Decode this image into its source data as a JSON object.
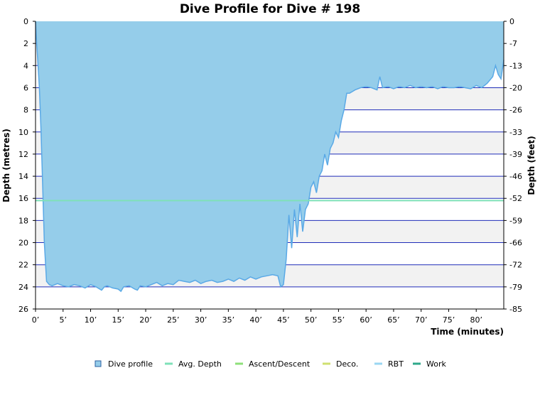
{
  "chart_data": {
    "type": "area",
    "title": "Dive Profile for Dive # 198",
    "xlabel": "Time (minutes)",
    "ylabel": "Depth (metres)",
    "ylabel_right": "Depth (feet)",
    "xlim": [
      0,
      85
    ],
    "ylim": [
      0,
      26
    ],
    "y_inverted": true,
    "grid": true,
    "x_ticks": [
      "0’",
      "5’",
      "10’",
      "15’",
      "20’",
      "25’",
      "30’",
      "35’",
      "40’",
      "45’",
      "50’",
      "55’",
      "60’",
      "65’",
      "70’",
      "75’",
      "80’"
    ],
    "y_ticks_left": [
      "0",
      "2",
      "4",
      "6",
      "8",
      "10",
      "12",
      "14",
      "16",
      "18",
      "20",
      "22",
      "24",
      "26"
    ],
    "y_ticks_right": [
      "0",
      "-7",
      "-13",
      "-20",
      "-26",
      "-33",
      "-39",
      "-46",
      "-52",
      "-59",
      "-66",
      "-72",
      "-79",
      "-85"
    ],
    "avg_depth": 16.2,
    "series": [
      {
        "name": "Dive profile",
        "color": "#95cdea",
        "line_color": "#5aa9e6",
        "x": [
          0,
          0.2,
          0.4,
          0.7,
          1.0,
          1.3,
          1.6,
          2.0,
          2.5,
          3,
          4,
          5,
          6,
          7,
          8,
          9,
          10,
          11,
          12,
          12.5,
          13,
          14,
          15,
          15.5,
          16,
          17,
          18,
          18.5,
          19,
          20,
          21,
          22,
          23,
          24,
          25,
          26,
          27,
          28,
          29,
          30,
          31,
          32,
          33,
          34,
          35,
          36,
          37,
          38,
          39,
          40,
          41,
          42,
          43,
          44,
          44.5,
          45,
          45.5,
          46,
          46.5,
          47,
          47.5,
          48,
          48.5,
          49,
          49.5,
          50,
          50.5,
          51,
          51.5,
          52,
          52.5,
          53,
          53.5,
          54,
          54.5,
          55,
          55.5,
          56,
          56.5,
          57,
          58,
          59,
          60,
          61,
          62,
          62.5,
          63,
          64,
          65,
          66,
          67,
          68,
          69,
          70,
          71,
          72,
          73,
          74,
          75,
          76,
          77,
          78,
          79,
          80,
          81,
          82,
          83,
          83.5,
          84,
          84.5,
          85
        ],
        "values": [
          0,
          2.0,
          3.5,
          6.0,
          10,
          15,
          20,
          23.5,
          23.8,
          23.9,
          23.7,
          23.9,
          24.0,
          23.8,
          23.9,
          24.1,
          23.8,
          24.0,
          24.3,
          24.0,
          23.9,
          24.1,
          24.2,
          24.4,
          24.0,
          23.9,
          24.2,
          24.3,
          23.9,
          24.0,
          23.8,
          23.6,
          23.9,
          23.7,
          23.8,
          23.4,
          23.5,
          23.6,
          23.4,
          23.7,
          23.5,
          23.4,
          23.6,
          23.5,
          23.3,
          23.5,
          23.2,
          23.4,
          23.1,
          23.3,
          23.1,
          23.0,
          22.9,
          23.0,
          24.0,
          23.8,
          21.5,
          17.5,
          20.5,
          17.0,
          19.5,
          16.5,
          19.0,
          17.0,
          16.5,
          15.0,
          14.5,
          15.5,
          14.0,
          13.5,
          12.0,
          13.0,
          11.5,
          11.0,
          10.0,
          10.5,
          9.0,
          8.0,
          6.5,
          6.5,
          6.2,
          6.0,
          5.9,
          6.0,
          6.2,
          5.0,
          6.0,
          5.9,
          6.1,
          5.9,
          6.0,
          5.8,
          6.0,
          5.9,
          6.0,
          5.9,
          6.1,
          5.9,
          6.0,
          6.0,
          5.9,
          6.0,
          6.1,
          5.8,
          6.0,
          5.6,
          5.0,
          4.0,
          4.8,
          5.2,
          3.5
        ]
      }
    ],
    "legend": {
      "placement": "bottom",
      "items": [
        {
          "label": "Dive profile",
          "color": "#95cdea",
          "type": "box"
        },
        {
          "label": "Avg. Depth",
          "color": "#7fe1b8",
          "type": "line"
        },
        {
          "label": "Ascent/Descent",
          "color": "#8ee07a",
          "type": "line"
        },
        {
          "label": "Deco.",
          "color": "#cfe070",
          "type": "line"
        },
        {
          "label": "RBT",
          "color": "#9ad6f2",
          "type": "line"
        },
        {
          "label": "Work",
          "color": "#2ea88a",
          "type": "line"
        }
      ]
    }
  }
}
